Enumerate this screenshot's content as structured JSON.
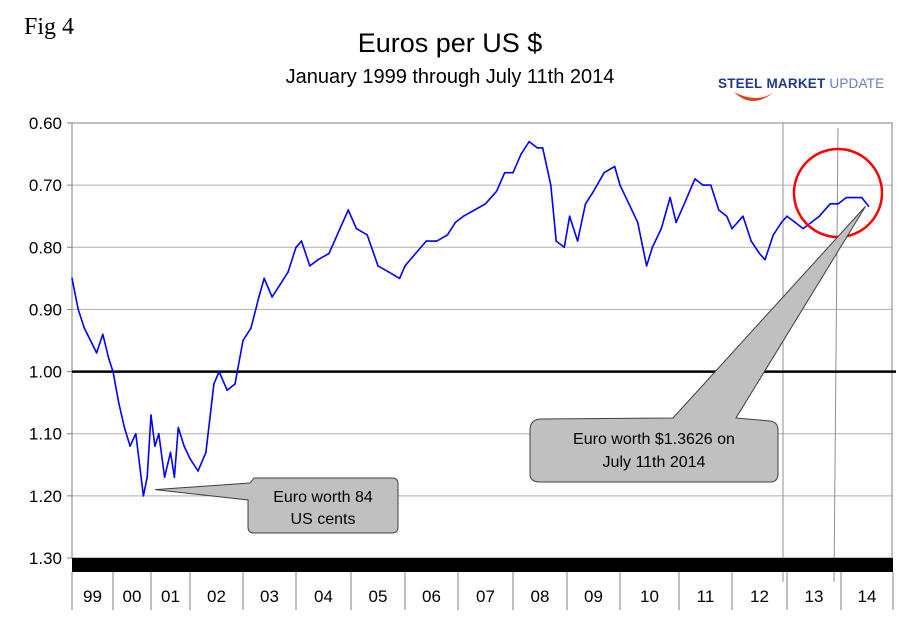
{
  "figure_label": "Fig 4",
  "logo": {
    "text_bold": "STEEL",
    "text_mid": "MARKET",
    "text_light": "UPDATE"
  },
  "chart_data": {
    "type": "line",
    "title": "Euros per US $",
    "subtitle": "January 1999 through July 11th 2014",
    "xlabel": "",
    "ylabel": "",
    "y_inverted": true,
    "ylim": [
      0.6,
      1.3
    ],
    "yticks": [
      "0.60",
      "0.70",
      "0.80",
      "0.90",
      "1.00",
      "1.10",
      "1.20",
      "1.30"
    ],
    "ytick_values": [
      0.6,
      0.7,
      0.8,
      0.9,
      1.0,
      1.1,
      1.2,
      1.3
    ],
    "xcategories": [
      "99",
      "00",
      "01",
      "02",
      "03",
      "04",
      "05",
      "06",
      "07",
      "08",
      "09",
      "10",
      "11",
      "12",
      "13",
      "14"
    ],
    "grid": "horizontal",
    "reference_line": 1.0,
    "series_color": "#0000ff",
    "x": [
      1999.0,
      1999.15,
      1999.3,
      1999.45,
      1999.6,
      1999.75,
      1999.9,
      2000.0,
      2000.15,
      2000.3,
      2000.45,
      2000.6,
      2000.8,
      2000.9,
      2001.0,
      2001.1,
      2001.2,
      2001.35,
      2001.5,
      2001.6,
      2001.7,
      2001.85,
      2002.0,
      2002.15,
      2002.3,
      2002.45,
      2002.55,
      2002.7,
      2002.85,
      2003.0,
      2003.15,
      2003.3,
      2003.4,
      2003.55,
      2003.7,
      2003.85,
      2004.0,
      2004.1,
      2004.25,
      2004.4,
      2004.6,
      2004.8,
      2004.95,
      2005.1,
      2005.3,
      2005.5,
      2005.7,
      2005.9,
      2006.0,
      2006.2,
      2006.4,
      2006.6,
      2006.8,
      2006.95,
      2007.1,
      2007.3,
      2007.5,
      2007.7,
      2007.85,
      2008.0,
      2008.15,
      2008.3,
      2008.45,
      2008.55,
      2008.7,
      2008.8,
      2008.95,
      2009.05,
      2009.2,
      2009.35,
      2009.5,
      2009.7,
      2009.9,
      2010.0,
      2010.15,
      2010.3,
      2010.45,
      2010.55,
      2010.7,
      2010.85,
      2010.95,
      2011.1,
      2011.3,
      2011.45,
      2011.6,
      2011.75,
      2011.9,
      2012.0,
      2012.2,
      2012.35,
      2012.5,
      2012.6,
      2012.75,
      2012.9,
      2013.0,
      2013.15,
      2013.3,
      2013.45,
      2013.6,
      2013.8,
      2013.95,
      2014.1,
      2014.25,
      2014.4,
      2014.53
    ],
    "values": [
      0.85,
      0.9,
      0.93,
      0.95,
      0.97,
      0.94,
      0.98,
      1.0,
      1.05,
      1.09,
      1.12,
      1.1,
      1.2,
      1.17,
      1.07,
      1.12,
      1.1,
      1.17,
      1.13,
      1.17,
      1.09,
      1.12,
      1.14,
      1.16,
      1.13,
      1.02,
      1.0,
      1.03,
      1.02,
      0.95,
      0.93,
      0.88,
      0.85,
      0.88,
      0.86,
      0.84,
      0.8,
      0.79,
      0.83,
      0.82,
      0.81,
      0.77,
      0.74,
      0.77,
      0.78,
      0.83,
      0.84,
      0.85,
      0.83,
      0.81,
      0.79,
      0.79,
      0.78,
      0.76,
      0.75,
      0.74,
      0.73,
      0.71,
      0.68,
      0.68,
      0.65,
      0.63,
      0.64,
      0.64,
      0.7,
      0.79,
      0.8,
      0.75,
      0.79,
      0.73,
      0.71,
      0.68,
      0.67,
      0.7,
      0.73,
      0.76,
      0.83,
      0.8,
      0.77,
      0.72,
      0.76,
      0.73,
      0.69,
      0.7,
      0.7,
      0.74,
      0.75,
      0.77,
      0.75,
      0.79,
      0.81,
      0.82,
      0.78,
      0.76,
      0.75,
      0.76,
      0.77,
      0.76,
      0.75,
      0.73,
      0.73,
      0.72,
      0.72,
      0.72,
      0.734
    ],
    "annotations": [
      {
        "text_line1": "Euro worth 84",
        "text_line2": "US cents",
        "points_to": [
          2001.0,
          1.19
        ]
      },
      {
        "text_line1": "Euro worth $1.3626 on",
        "text_line2": "July 11th 2014",
        "points_to": [
          2014.53,
          0.734
        ]
      }
    ],
    "highlight_circle_color": "#ff0000",
    "callout_fill": "#c0c0c0"
  }
}
